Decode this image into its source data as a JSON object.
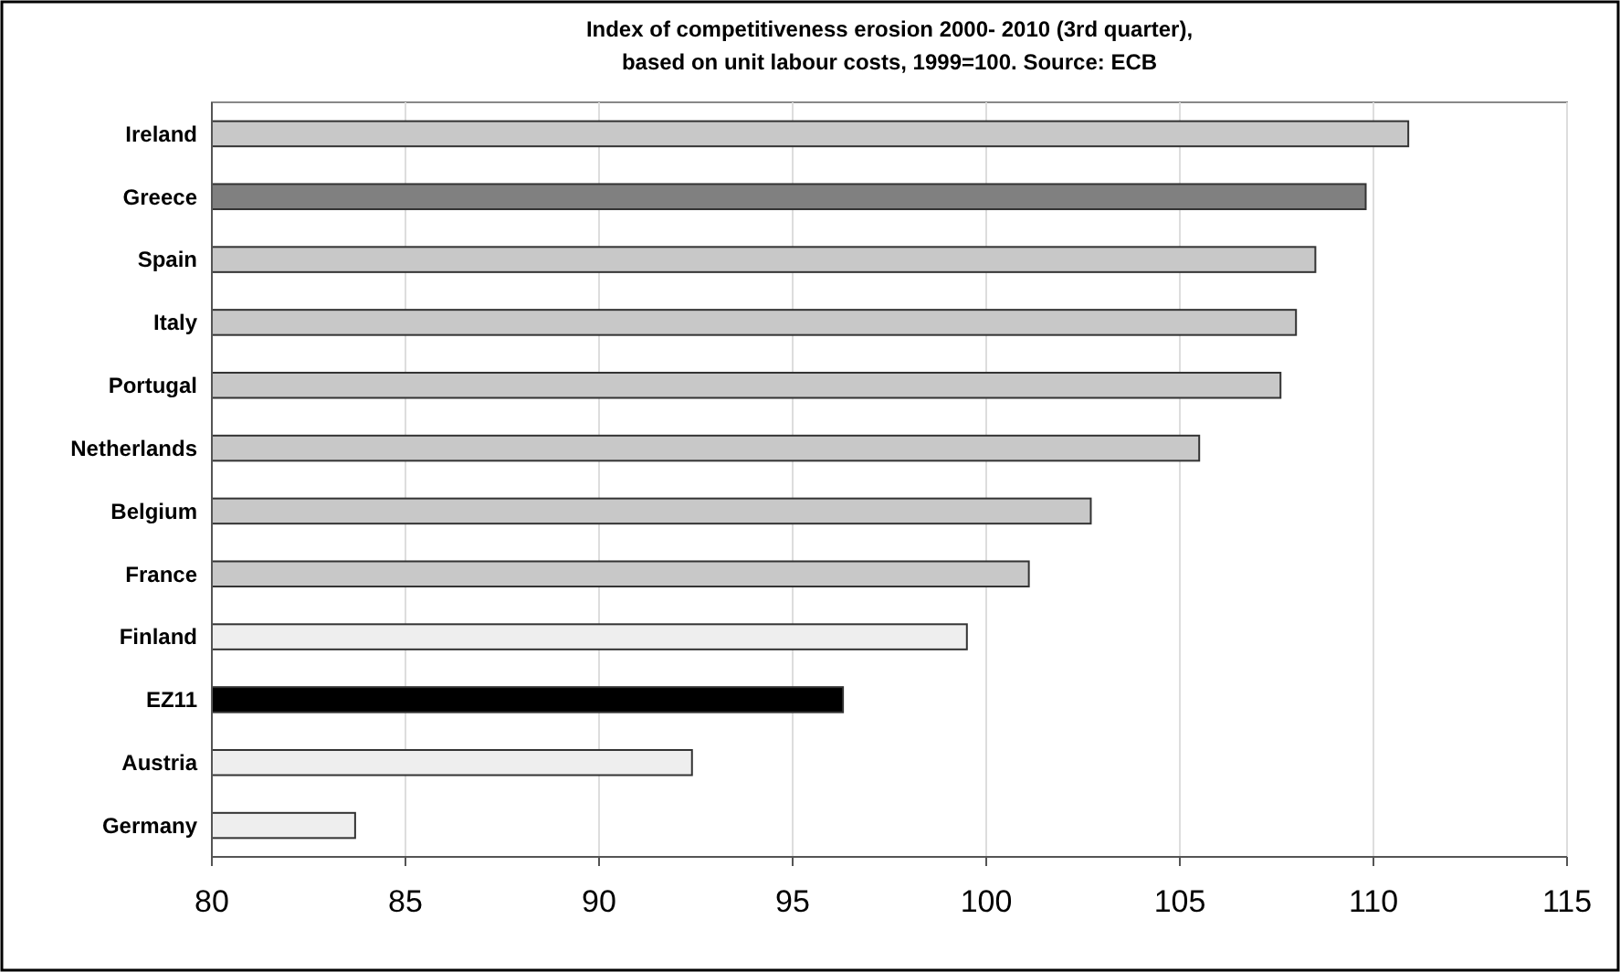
{
  "chart_data": {
    "type": "bar",
    "orientation": "horizontal",
    "title": "Index of competitiveness erosion 2000- 2010 (3rd quarter),\nbased on unit labour costs, 1999=100. Source: ECB",
    "categories": [
      "Ireland",
      "Greece",
      "Spain",
      "Italy",
      "Portugal",
      "Netherlands",
      "Belgium",
      "France",
      "Finland",
      "EZ11",
      "Austria",
      "Germany"
    ],
    "values": [
      110.9,
      109.8,
      108.5,
      108.0,
      107.6,
      105.5,
      102.7,
      101.1,
      99.5,
      96.3,
      92.4,
      83.7
    ],
    "colors": [
      "#c8c8c8",
      "#808080",
      "#c8c8c8",
      "#c8c8c8",
      "#c8c8c8",
      "#c8c8c8",
      "#c8c8c8",
      "#c8c8c8",
      "#eeeeee",
      "#000000",
      "#eeeeee",
      "#eeeeee"
    ],
    "xlim": [
      80,
      115
    ],
    "xticks": [
      80,
      85,
      90,
      95,
      100,
      105,
      110,
      115
    ],
    "grid": "x"
  }
}
